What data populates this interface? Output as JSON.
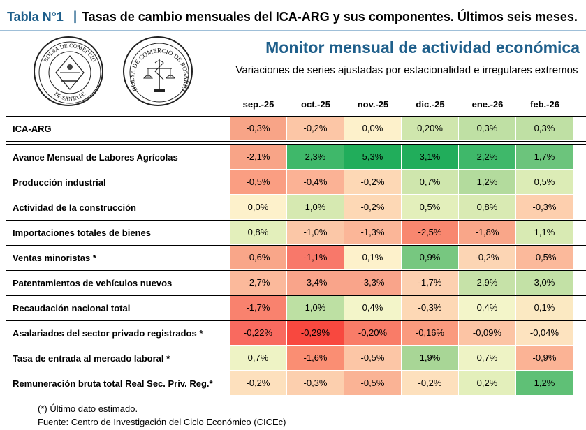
{
  "header": {
    "prefix": "Tabla N°1",
    "separator": "|",
    "title": "Tasas de cambio mensuales del ICA-ARG y sus componentes. Últimos seis meses."
  },
  "logos": {
    "left": "BOLSA DE COMERCIO DE SANTA FE",
    "right": "BOLSA DE COMERCIO DE ROSARIO"
  },
  "monitor": {
    "title": "Monitor mensual de actividad económica",
    "subtitle": "Variaciones de series ajustadas por estacionalidad e irregulares extremos"
  },
  "table": {
    "columns": [
      "sep.-25",
      "oct.-25",
      "nov.-25",
      "dic.-25",
      "ene.-26",
      "feb.-26"
    ],
    "rows": [
      {
        "label": "ICA-ARG",
        "values": [
          "-0,3%",
          "-0,2%",
          "0,0%",
          "0,20%",
          "0,3%",
          "0,3%"
        ],
        "colors": [
          "#f8a487",
          "#fcc6a6",
          "#fdf1cb",
          "#cfe6ad",
          "#bfe0a4",
          "#bfe0a4"
        ]
      },
      {
        "label": "Avance Mensual de Labores Agrícolas",
        "values": [
          "-2,1%",
          "2,3%",
          "5,3%",
          "3,1%",
          "2,2%",
          "1,7%"
        ],
        "colors": [
          "#f8a487",
          "#3fb86a",
          "#21ad5b",
          "#21ad5b",
          "#3fb86a",
          "#6cc47c"
        ]
      },
      {
        "label": "Producción industrial",
        "values": [
          "-0,5%",
          "-0,4%",
          "-0,2%",
          "0,7%",
          "1,2%",
          "0,5%"
        ],
        "colors": [
          "#fa9e82",
          "#fbb295",
          "#fdd8b5",
          "#cfe6ad",
          "#b3db9d",
          "#dcecb6"
        ]
      },
      {
        "label": "Actividad de la construcción",
        "values": [
          "0,0%",
          "1,0%",
          "-0,2%",
          "0,5%",
          "0,8%",
          "-0,3%"
        ],
        "colors": [
          "#fdf1cb",
          "#d6e9b1",
          "#fdd8b5",
          "#e3efbb",
          "#d9eab3",
          "#fdcfae"
        ]
      },
      {
        "label": "Importaciones totales de bienes",
        "values": [
          "0,8%",
          "-1,0%",
          "-1,3%",
          "-2,5%",
          "-1,8%",
          "1,1%"
        ],
        "colors": [
          "#e3efbb",
          "#fbc7a7",
          "#fbb698",
          "#f8876f",
          "#f9a689",
          "#d8eab3"
        ]
      },
      {
        "label": "Ventas minoristas *",
        "values": [
          "-0,6%",
          "-1,1%",
          "0,1%",
          "0,9%",
          "-0,2%",
          "-0,5%"
        ],
        "colors": [
          "#f9a689",
          "#f8786a",
          "#fdf1cb",
          "#77c780",
          "#fcd5b4",
          "#fbb99b"
        ]
      },
      {
        "label": "Patentamientos de vehículos nuevos",
        "values": [
          "-2,7%",
          "-3,4%",
          "-3,3%",
          "-1,7%",
          "2,9%",
          "3,0%"
        ],
        "colors": [
          "#fbb99b",
          "#f9a48a",
          "#f9a48a",
          "#fcd0b0",
          "#c6e2a8",
          "#c3e1a6"
        ]
      },
      {
        "label": "Recaudación nacional total",
        "values": [
          "-1,7%",
          "1,0%",
          "0,4%",
          "-0,3%",
          "0,4%",
          "0,1%"
        ],
        "colors": [
          "#f9826e",
          "#bde0a3",
          "#f3f5c9",
          "#fdd8b5",
          "#f3f5c9",
          "#fbe9c2"
        ]
      },
      {
        "label": "Asalariados del sector privado registrados *",
        "values": [
          "-0,22%",
          "-0,29%",
          "-0,20%",
          "-0,16%",
          "-0,09%",
          "-0,04%"
        ],
        "colors": [
          "#f96a5f",
          "#f8483f",
          "#f97c68",
          "#fa9a7e",
          "#fcc4a4",
          "#fde3bf"
        ]
      },
      {
        "label": "Tasa de entrada al mercado laboral *",
        "values": [
          "0,7%",
          "-1,6%",
          "-0,5%",
          "1,9%",
          "0,7%",
          "-0,9%"
        ],
        "colors": [
          "#eef3c5",
          "#fa8e73",
          "#fcc6a6",
          "#a8d696",
          "#eef3c5",
          "#fbb395"
        ]
      },
      {
        "label": "Remuneración bruta total Real Sec. Priv. Reg.*",
        "values": [
          "-0,2%",
          "-0,3%",
          "-0,5%",
          "-0,2%",
          "0,2%",
          "1,2%"
        ],
        "colors": [
          "#fde0bd",
          "#fccfae",
          "#fab395",
          "#fde0bd",
          "#e3efbb",
          "#5fc076"
        ]
      }
    ]
  },
  "footnotes": {
    "note": "(*) Último dato estimado.",
    "source": "Fuente: Centro de Investigación del Ciclo Económico (CICEc)"
  }
}
